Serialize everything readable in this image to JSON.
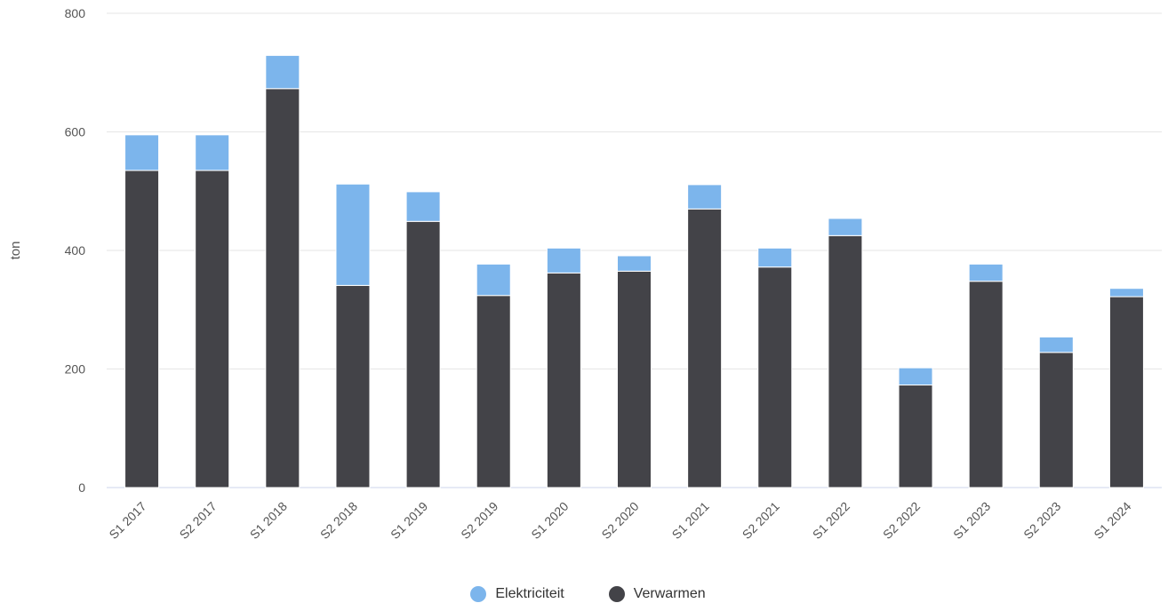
{
  "chart_data": {
    "type": "bar",
    "stacked": true,
    "ylabel": "ton",
    "ylim": [
      0,
      800
    ],
    "yticks": [
      0,
      200,
      400,
      600,
      800
    ],
    "grid": true,
    "legend_position": "bottom-center",
    "categories": [
      "S1 2017",
      "S2 2017",
      "S1 2018",
      "S2 2018",
      "S1 2019",
      "S2 2019",
      "S1 2020",
      "S2 2020",
      "S1 2021",
      "S2 2021",
      "S1 2022",
      "S2 2022",
      "S1 2023",
      "S2 2023",
      "S1 2024"
    ],
    "series": [
      {
        "name": "Verwarmen",
        "color": "#434348",
        "values": [
          535,
          535,
          673,
          341,
          449,
          324,
          362,
          365,
          470,
          372,
          425,
          173,
          348,
          228,
          322
        ]
      },
      {
        "name": "Elektriciteit",
        "color": "#7cb5ec",
        "values": [
          60,
          60,
          56,
          171,
          50,
          53,
          42,
          26,
          41,
          32,
          29,
          29,
          29,
          26,
          14
        ]
      }
    ]
  },
  "legend": {
    "items": [
      {
        "label": "Elektriciteit",
        "color": "#7cb5ec"
      },
      {
        "label": "Verwarmen",
        "color": "#434348"
      }
    ]
  }
}
